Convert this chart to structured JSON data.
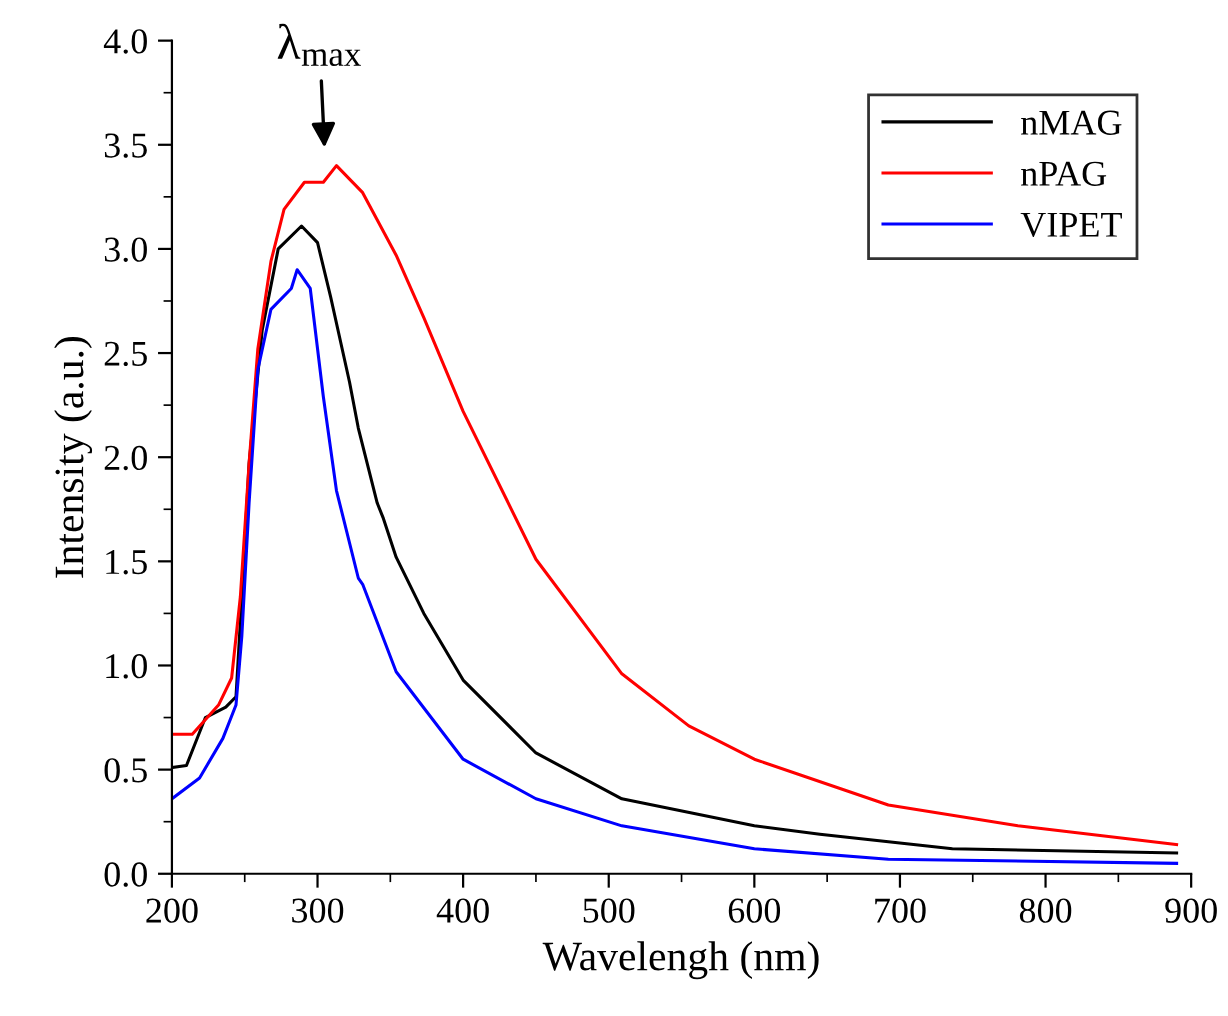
{
  "chart_data": {
    "type": "line",
    "xlabel": "Wavelengh (nm)",
    "ylabel": "Intensity (a.u.)",
    "xlim": [
      200,
      900
    ],
    "ylim": [
      0,
      4.0
    ],
    "xticks": [
      200,
      300,
      400,
      500,
      600,
      700,
      800,
      900
    ],
    "yticks": [
      {
        "value": 0,
        "label": "0.0"
      },
      0.5,
      {
        "value": 1,
        "label": "1.0"
      },
      1.5,
      {
        "value": 2,
        "label": "2.0"
      },
      2.5,
      {
        "value": 3,
        "label": "3.0"
      },
      3.5,
      {
        "value": 4,
        "label": "4.0"
      }
    ],
    "grid": false,
    "legend": "top right",
    "line_style": "solid",
    "marker": "none",
    "annotations": [
      "λ$_{max}$"
    ],
    "series": [
      {
        "name": "nMAG",
        "color": "#000000",
        "x": [
          200,
          210,
          223,
          237,
          244,
          248,
          253,
          262,
          273,
          289,
          300,
          309,
          322,
          328,
          341,
          345,
          354,
          373,
          400,
          450,
          509,
          600,
          645,
          736,
          890
        ],
        "values": [
          0.51,
          0.52,
          0.75,
          0.8,
          0.85,
          1.33,
          1.97,
          2.61,
          3.0,
          3.11,
          3.03,
          2.77,
          2.36,
          2.14,
          1.78,
          1.71,
          1.52,
          1.25,
          0.93,
          0.58,
          0.36,
          0.23,
          0.19,
          0.12,
          0.1
        ]
      },
      {
        "name": "nPAG",
        "color": "#ff0000",
        "x": [
          200,
          214,
          232,
          241,
          247,
          253,
          259,
          268,
          277,
          291,
          304,
          313,
          331,
          354,
          373,
          400,
          450,
          509,
          555,
          600,
          692,
          781,
          890
        ],
        "values": [
          0.67,
          0.67,
          0.81,
          0.94,
          1.33,
          1.97,
          2.52,
          2.94,
          3.19,
          3.32,
          3.32,
          3.4,
          3.27,
          2.97,
          2.67,
          2.22,
          1.51,
          0.96,
          0.71,
          0.55,
          0.33,
          0.23,
          0.14
        ]
      },
      {
        "name": "VIPET",
        "color": "#0000ff",
        "x": [
          200,
          219,
          235,
          244,
          248,
          253,
          259,
          268,
          282,
          286,
          295,
          304,
          313,
          328,
          331,
          354,
          400,
          450,
          509,
          600,
          692,
          890
        ],
        "values": [
          0.36,
          0.46,
          0.65,
          0.81,
          1.14,
          1.78,
          2.42,
          2.71,
          2.81,
          2.9,
          2.81,
          2.29,
          1.84,
          1.42,
          1.39,
          0.97,
          0.55,
          0.36,
          0.23,
          0.12,
          0.07,
          0.05
        ]
      }
    ]
  }
}
